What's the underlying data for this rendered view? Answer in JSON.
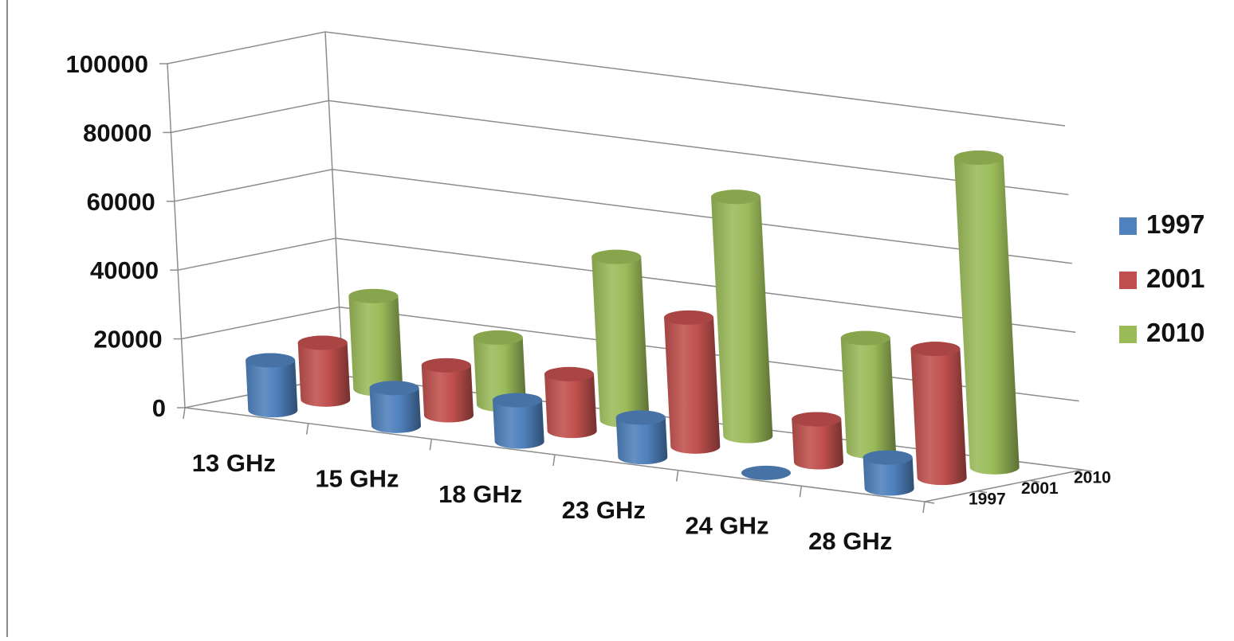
{
  "chart_data": {
    "type": "bar",
    "style": "3d-cylinder",
    "title": "",
    "xlabel": "",
    "ylabel": "",
    "categories": [
      "13 GHz",
      "15 GHz",
      "18 GHz",
      "23 GHz",
      "24 GHz",
      "28 GHz"
    ],
    "depth_categories": [
      "1997",
      "2001",
      "2010"
    ],
    "y_ticks": [
      "0",
      "20000",
      "40000",
      "60000",
      "80000",
      "100000"
    ],
    "ylim": [
      0,
      100000
    ],
    "grid": true,
    "legend_position": "right",
    "series": [
      {
        "name": "1997",
        "color": "#4f81bd",
        "values": [
          14500,
          11000,
          12000,
          11500,
          0,
          9000
        ]
      },
      {
        "name": "2001",
        "color": "#c0504d",
        "values": [
          16500,
          14500,
          16500,
          37500,
          12500,
          37500
        ]
      },
      {
        "name": "2010",
        "color": "#9bbb59",
        "values": [
          27000,
          19500,
          47500,
          69500,
          33000,
          90000
        ]
      }
    ]
  }
}
